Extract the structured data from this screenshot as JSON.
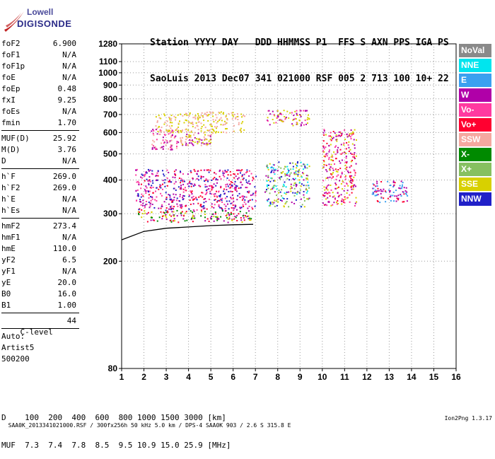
{
  "logo": {
    "top": "Lowell",
    "bottom": "DIGISONDE"
  },
  "header": {
    "labels": "Station YYYY DAY   DDD HHMMSS P1  FFS S AXN PPS IGA PS",
    "values": "SaoLuis 2013 Dec07 341 021000 RSF 005 2 713 100 10+ 22"
  },
  "params": {
    "group1": [
      {
        "label": "foF2",
        "value": "6.900"
      },
      {
        "label": "foF1",
        "value": "N/A"
      },
      {
        "label": "foF1p",
        "value": "N/A"
      },
      {
        "label": "foE",
        "value": "N/A"
      },
      {
        "label": "foEp",
        "value": "0.48"
      },
      {
        "label": "fxI",
        "value": "9.25"
      },
      {
        "label": "foEs",
        "value": "N/A"
      },
      {
        "label": "fmin",
        "value": "1.70"
      }
    ],
    "group2": [
      {
        "label": "MUF(D)",
        "value": "25.92"
      },
      {
        "label": "M(D)",
        "value": "3.76"
      },
      {
        "label": "D",
        "value": "N/A"
      }
    ],
    "group3": [
      {
        "label": "h`F",
        "value": "269.0"
      },
      {
        "label": "h`F2",
        "value": "269.0"
      },
      {
        "label": "h`E",
        "value": "N/A"
      },
      {
        "label": "h`Es",
        "value": "N/A"
      }
    ],
    "group4": [
      {
        "label": "hmF2",
        "value": "273.4"
      },
      {
        "label": "hmF1",
        "value": "N/A"
      },
      {
        "label": "hmE",
        "value": "110.0"
      },
      {
        "label": "yF2",
        "value": "6.5"
      },
      {
        "label": "yF1",
        "value": "N/A"
      },
      {
        "label": "yE",
        "value": "20.0"
      },
      {
        "label": "B0",
        "value": "16.0"
      },
      {
        "label": "B1",
        "value": "1.00"
      }
    ],
    "clevel": {
      "label": "C-level",
      "value": "44"
    },
    "auto": [
      "Auto:",
      "Artist5",
      "500200"
    ]
  },
  "legend": [
    {
      "label": "NoVal",
      "color": "#8a8a8a"
    },
    {
      "label": "NNE",
      "color": "#00e5ee"
    },
    {
      "label": "E",
      "color": "#3aa0f0"
    },
    {
      "label": "W",
      "color": "#b000a8"
    },
    {
      "label": "Vo-",
      "color": "#ff3aa0"
    },
    {
      "label": "Vo+",
      "color": "#ff0030"
    },
    {
      "label": "SSW",
      "color": "#f5a8a0"
    },
    {
      "label": "X-",
      "color": "#008a00"
    },
    {
      "label": "X+",
      "color": "#86c060"
    },
    {
      "label": "SSE",
      "color": "#d8d000"
    },
    {
      "label": "NNW",
      "color": "#2020c8"
    }
  ],
  "bottom_table": {
    "row1": "D    100  200  400  600  800 1000 1500 3000 [km]",
    "row2": "MUF  7.3  7.4  7.8  8.5  9.5 10.9 15.0 25.9 [MHz]"
  },
  "footer": {
    "left": "SAA0K_2013341021000.RSF / 300fx256h 50 kHz 5.0 km / DPS-4 SAA0K 903 / 2.6 S 315.8 E",
    "right": "Ion2Png 1.3.17"
  },
  "chart_data": {
    "type": "scatter",
    "x_label_unit": "MHz",
    "y_label_unit": "km",
    "xlim": [
      1,
      16
    ],
    "ylim": [
      80,
      1280
    ],
    "x_ticks": [
      1,
      2,
      3,
      4,
      5,
      6,
      7,
      8,
      9,
      10,
      11,
      12,
      13,
      14,
      15,
      16
    ],
    "y_ticks": [
      80,
      200,
      300,
      400,
      500,
      600,
      700,
      800,
      900,
      1000,
      1100,
      1280
    ],
    "grid": true,
    "scale": "log",
    "trace_line": [
      [
        1.0,
        240
      ],
      [
        2.0,
        258
      ],
      [
        3.0,
        265
      ],
      [
        4.0,
        268
      ],
      [
        5.0,
        271
      ],
      [
        6.0,
        273
      ],
      [
        6.9,
        274
      ]
    ],
    "echo_clusters": [
      {
        "x": [
          1.7,
          6.8
        ],
        "y": [
          280,
          310
        ],
        "colors": [
          "#ff0030",
          "#b000a8",
          "#008a00",
          "#d8d000"
        ]
      },
      {
        "x": [
          1.6,
          7.0
        ],
        "y": [
          310,
          440
        ],
        "colors": [
          "#b000a8",
          "#ff3aa0",
          "#ff0030",
          "#2020c8"
        ]
      },
      {
        "x": [
          2.3,
          3.5
        ],
        "y": [
          520,
          620
        ],
        "colors": [
          "#b000a8",
          "#ff3aa0",
          "#f5a8a0"
        ]
      },
      {
        "x": [
          3.5,
          5.0
        ],
        "y": [
          540,
          600
        ],
        "colors": [
          "#d8d000",
          "#f5a8a0",
          "#b000a8"
        ]
      },
      {
        "x": [
          2.5,
          6.5
        ],
        "y": [
          600,
          720
        ],
        "colors": [
          "#f5a8a0",
          "#d8d000"
        ]
      },
      {
        "x": [
          7.4,
          9.4
        ],
        "y": [
          320,
          470
        ],
        "colors": [
          "#d8d000",
          "#2020c8",
          "#00e5ee",
          "#b000a8",
          "#86c060"
        ]
      },
      {
        "x": [
          7.5,
          9.4
        ],
        "y": [
          640,
          730
        ],
        "colors": [
          "#b000a8",
          "#ff3aa0",
          "#d8d000"
        ]
      },
      {
        "x": [
          10.0,
          11.5
        ],
        "y": [
          320,
          620
        ],
        "colors": [
          "#ff0030",
          "#ff3aa0",
          "#b000a8",
          "#d8d000"
        ]
      },
      {
        "x": [
          12.2,
          13.8
        ],
        "y": [
          330,
          400
        ],
        "colors": [
          "#3aa0f0",
          "#ff0030",
          "#b000a8"
        ]
      }
    ]
  }
}
